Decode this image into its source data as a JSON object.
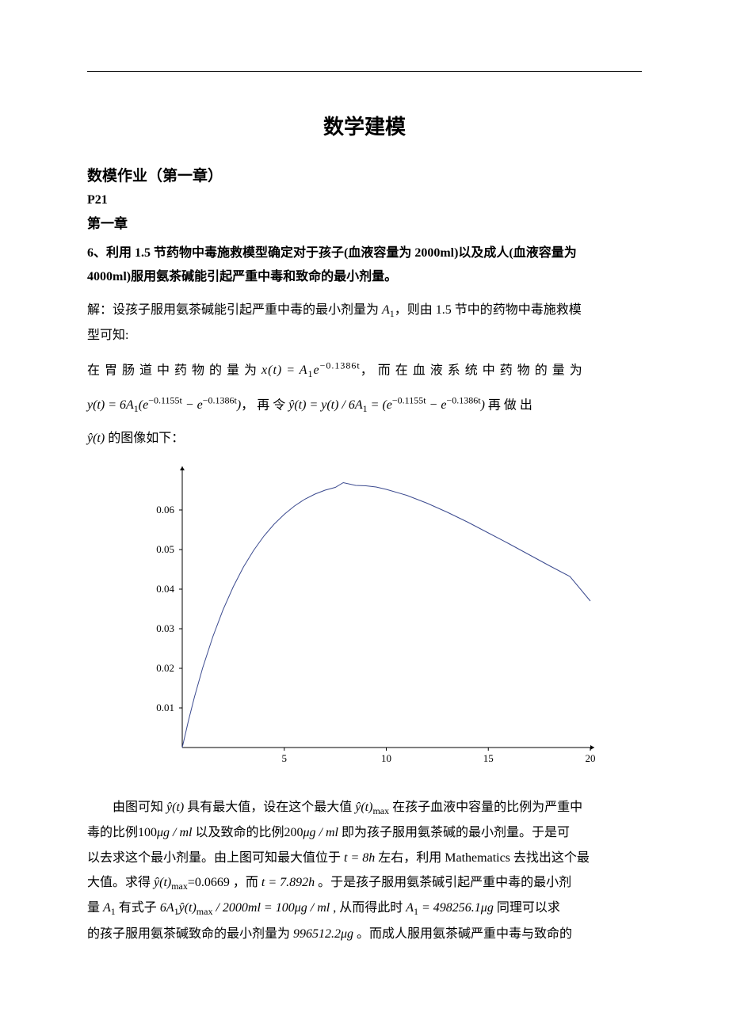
{
  "title": "数学建模",
  "subtitle": "数模作业（第一章）",
  "p21": "P21",
  "chapter": "第一章",
  "problem_line1": "6、利用 1.5 节药物中毒施救模型确定对于孩子(血液容量为 2000ml)以及成人(血液容量为",
  "problem_line2": "4000ml)服用氨茶碱能引起严重中毒和致命的最小剂量。",
  "sol_intro": "解：设孩子服用氨茶碱能引起严重中毒的最小剂量为 ",
  "A1": "A",
  "sol_intro2": "，则由 1.5 节中的药物中毒施救模",
  "sol_intro3": "型可知:",
  "eq1_pre": "在 胃 肠 道 中 药 物 的 量 为 ",
  "eq1_post": "， 而 在 血 液 系 统 中 药 物 的 量 为",
  "eq2_mid": "， 再 令 ",
  "eq2_post": " 再 做 出",
  "eq3": " 的图像如下：",
  "chart": {
    "type": "line",
    "xlim": [
      0,
      20
    ],
    "ylim": [
      0,
      0.07
    ],
    "xticks": [
      5,
      10,
      15,
      20
    ],
    "yticks": [
      0.01,
      0.02,
      0.03,
      0.04,
      0.05,
      0.06
    ],
    "line_color": "#3b4a8f",
    "axis_color": "#000000",
    "background": "#ffffff",
    "line_width": 1,
    "label_fontsize": 13,
    "points": [
      [
        0,
        0
      ],
      [
        0.3,
        0.0067
      ],
      [
        0.6,
        0.0128
      ],
      [
        1,
        0.0201
      ],
      [
        1.5,
        0.028
      ],
      [
        2,
        0.0348
      ],
      [
        2.5,
        0.0406
      ],
      [
        3,
        0.0456
      ],
      [
        3.5,
        0.0498
      ],
      [
        4,
        0.0534
      ],
      [
        4.5,
        0.0564
      ],
      [
        5,
        0.0589
      ],
      [
        5.5,
        0.061
      ],
      [
        6,
        0.0627
      ],
      [
        6.5,
        0.064
      ],
      [
        7,
        0.065
      ],
      [
        7.5,
        0.0657
      ],
      [
        7.892,
        0.0669
      ],
      [
        8.5,
        0.0662
      ],
      [
        9,
        0.0661
      ],
      [
        9.5,
        0.0658
      ],
      [
        10,
        0.0652
      ],
      [
        11,
        0.0637
      ],
      [
        12,
        0.0617
      ],
      [
        13,
        0.0594
      ],
      [
        14,
        0.0569
      ],
      [
        15,
        0.0542
      ],
      [
        16,
        0.0515
      ],
      [
        17,
        0.0487
      ],
      [
        18,
        0.0459
      ],
      [
        19,
        0.0432
      ],
      [
        20,
        0.037
      ]
    ]
  },
  "para2_a": "由图可知 ",
  "para2_b": " 具有最大值，设在这个最大值 ",
  "para2_c": " 在孩子血液中容量的比例为严重中",
  "para2_d": "毒的比例",
  "para2_e": " 以及致命的比例",
  "para2_f": " 即为孩子服用氨茶碱的最小剂量。于是可",
  "para2_g": "以去求这个最小剂量。由上图可知最大值位于 ",
  "para2_h": " 左右，利用 Mathematics 去找出这个最",
  "para2_i": "大值。求得 ",
  "para2_j": "=0.0669 ，而 ",
  "para2_k": "。于是孩子服用氨茶碱引起严重中毒的最小剂",
  "para2_l": "量 ",
  "para2_m": " 有式子 ",
  "para2_n": " , 从而得此时 ",
  "para2_o": " 同理可以求",
  "para2_p": "的孩子服用氨茶碱致命的最小剂量为 ",
  "para2_q": " 。而成人服用氨茶碱严重中毒与致命的",
  "val_100": "100",
  "val_200": "200",
  "unit_ugml": "μg / ml",
  "val_t8h": "t = 8h",
  "val_t789": "t = 7.892h",
  "val_eq_long": "6A₁ŷ(t)_max / 2000ml = 100μg / ml",
  "val_A1_res": "A₁ = 498256.1μg",
  "val_996": "996512.2μg"
}
